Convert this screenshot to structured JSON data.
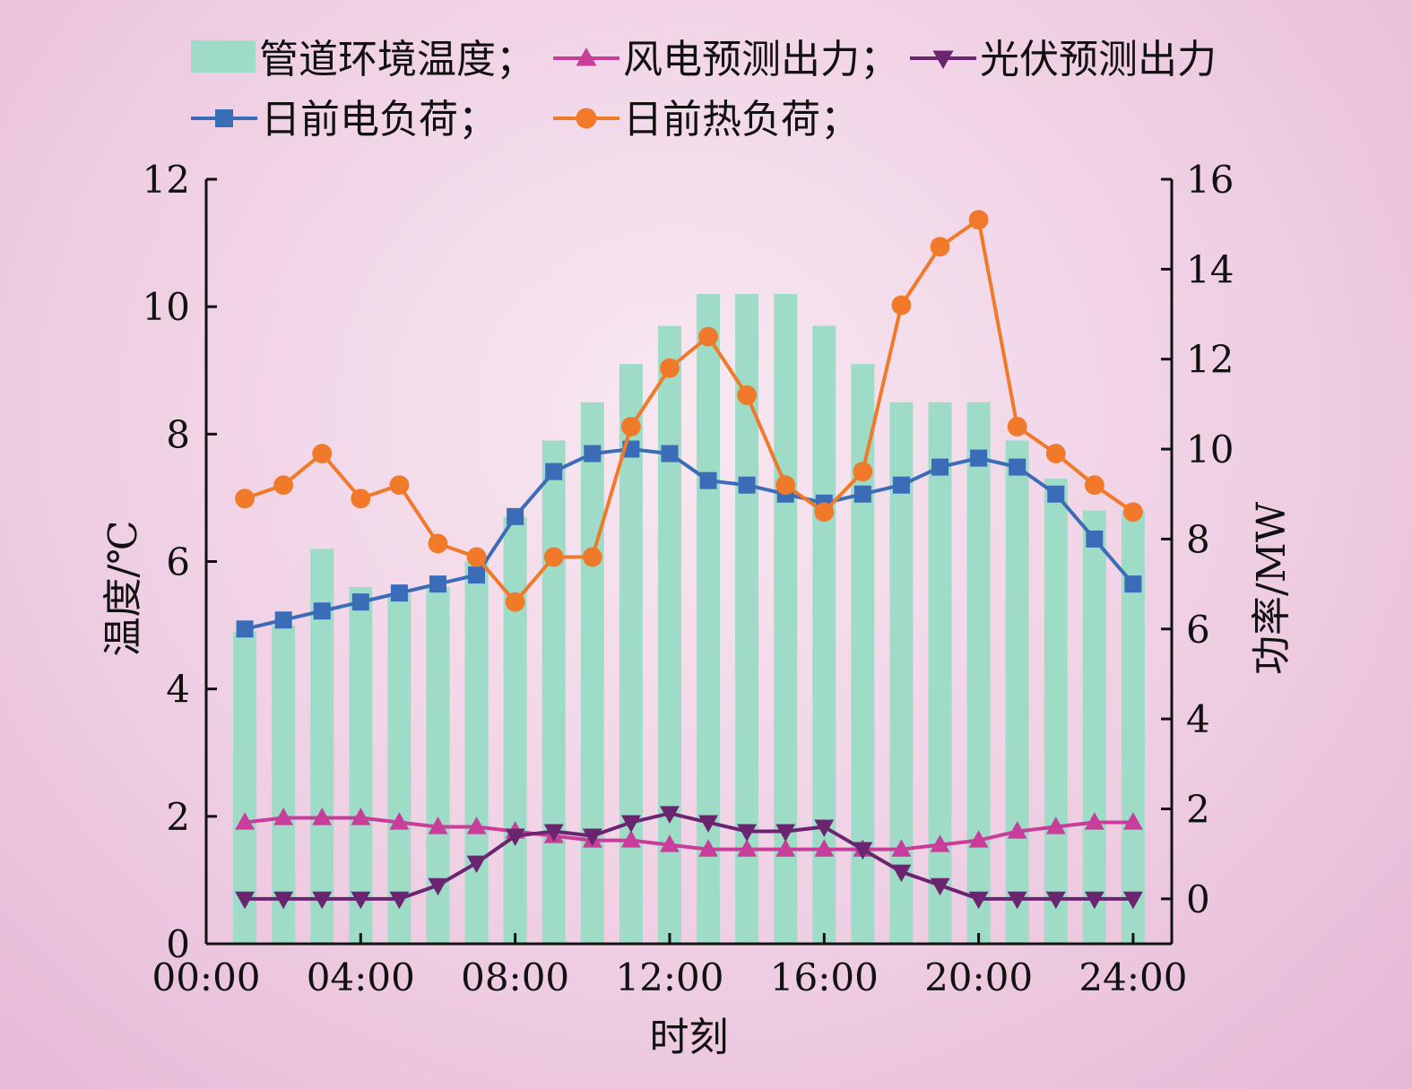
{
  "chart_data": {
    "type": "bar",
    "xlabel": "时刻",
    "ylabel_left": "温度/℃",
    "ylabel_right": "功率/MW",
    "x_tick_labels": [
      "00:00",
      "04:00",
      "08:00",
      "12:00",
      "16:00",
      "20:00",
      "24:00"
    ],
    "x_ticks_hours": [
      0,
      4,
      8,
      12,
      16,
      20,
      24
    ],
    "x_range_hours": [
      0,
      25
    ],
    "ylim_left": [
      0,
      12
    ],
    "yticks_left": [
      0,
      2,
      4,
      6,
      8,
      10,
      12
    ],
    "ylim_right": [
      -1,
      16
    ],
    "yticks_right": [
      0,
      2,
      4,
      6,
      8,
      10,
      12,
      14,
      16
    ],
    "grid": false,
    "legend_position": "top",
    "hours": [
      1,
      2,
      3,
      4,
      5,
      6,
      7,
      8,
      9,
      10,
      11,
      12,
      13,
      14,
      15,
      16,
      17,
      18,
      19,
      20,
      21,
      22,
      23,
      24
    ],
    "series": [
      {
        "name": "管道环境温度",
        "legend_label": "管道环境温度；",
        "kind": "bar",
        "axis": "left",
        "color": "#9edcc8",
        "values": [
          4.9,
          5.0,
          6.2,
          5.6,
          5.5,
          5.6,
          6.0,
          6.7,
          7.9,
          8.5,
          9.1,
          9.7,
          10.2,
          10.2,
          10.2,
          9.7,
          9.1,
          8.5,
          8.5,
          8.5,
          7.9,
          7.3,
          6.8,
          6.8
        ]
      },
      {
        "name": "风电预测出力",
        "legend_label": "风电预测出力；",
        "kind": "line",
        "marker": "triangle-up",
        "axis": "right",
        "color": "#c83c9a",
        "values": [
          1.7,
          1.8,
          1.8,
          1.8,
          1.7,
          1.6,
          1.6,
          1.5,
          1.4,
          1.3,
          1.3,
          1.2,
          1.1,
          1.1,
          1.1,
          1.1,
          1.1,
          1.1,
          1.2,
          1.3,
          1.5,
          1.6,
          1.7,
          1.7
        ]
      },
      {
        "name": "光伏预测出力",
        "legend_label": "光伏预测出力",
        "kind": "line",
        "marker": "triangle-down",
        "axis": "right",
        "color": "#6b2470",
        "values": [
          0,
          0,
          0,
          0,
          0,
          0.3,
          0.8,
          1.4,
          1.5,
          1.4,
          1.7,
          1.9,
          1.7,
          1.5,
          1.5,
          1.6,
          1.1,
          0.6,
          0.3,
          0,
          0,
          0,
          0,
          0
        ]
      },
      {
        "name": "日前电负荷",
        "legend_label": "日前电负荷；",
        "kind": "line",
        "marker": "square",
        "axis": "right",
        "color": "#3b6cb7",
        "values": [
          6.0,
          6.2,
          6.4,
          6.6,
          6.8,
          7.0,
          7.2,
          8.5,
          9.5,
          9.9,
          10.0,
          9.9,
          9.3,
          9.2,
          9.0,
          8.8,
          9.0,
          9.2,
          9.6,
          9.8,
          9.6,
          9.0,
          8.0,
          7.0
        ]
      },
      {
        "name": "日前热负荷",
        "legend_label": "日前热负荷；",
        "kind": "line",
        "marker": "circle",
        "axis": "right",
        "color": "#f07a2a",
        "values": [
          8.9,
          9.2,
          9.9,
          8.9,
          9.2,
          7.9,
          7.6,
          6.6,
          7.6,
          7.6,
          10.5,
          11.8,
          12.5,
          11.2,
          9.2,
          8.6,
          9.5,
          13.2,
          14.5,
          15.1,
          10.5,
          9.9,
          9.2,
          8.6
        ]
      }
    ]
  }
}
